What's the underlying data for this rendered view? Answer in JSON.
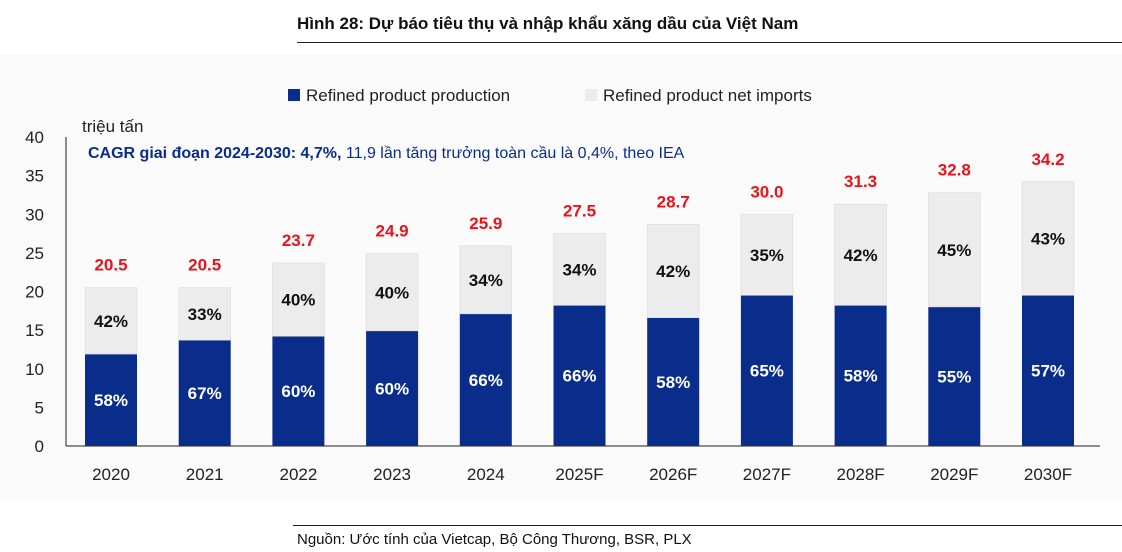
{
  "title": "Hình 28: Dự báo tiêu thụ và nhập khẩu xăng dầu của Việt Nam",
  "source": "Nguồn: Ước tính của Vietcap, Bộ Công Thương, BSR, PLX",
  "chart_data": {
    "type": "bar",
    "stacked": true,
    "ylabel": "triệu tấn",
    "ylim": [
      0,
      40
    ],
    "yticks": [
      "0",
      "5",
      "10",
      "15",
      "20",
      "25",
      "30",
      "35",
      "40"
    ],
    "grid": false,
    "legend_placement": "top",
    "annotation_bold": "CAGR giai đoạn 2024-2030: 4,7%,",
    "annotation_rest": " 11,9 lần tăng trưởng toàn cầu là 0,4%, theo IEA",
    "categories": [
      "2020",
      "2021",
      "2022",
      "2023",
      "2024",
      "2025F",
      "2026F",
      "2027F",
      "2028F",
      "2029F",
      "2030F"
    ],
    "totals": [
      "20.5",
      "20.5",
      "23.7",
      "24.9",
      "25.9",
      "27.5",
      "28.7",
      "30.0",
      "31.3",
      "32.8",
      "34.2"
    ],
    "series": [
      {
        "name": "Refined product production",
        "color": "#0a2d8c",
        "values": [
          11.9,
          13.7,
          14.2,
          14.9,
          17.1,
          18.2,
          16.6,
          19.5,
          18.2,
          18.0,
          19.5
        ],
        "labels": [
          "58%",
          "67%",
          "60%",
          "60%",
          "66%",
          "66%",
          "58%",
          "65%",
          "58%",
          "55%",
          "57%"
        ]
      },
      {
        "name": "Refined product net imports",
        "color": "#ececec",
        "values": [
          8.6,
          6.8,
          9.5,
          10.0,
          8.8,
          9.3,
          12.1,
          10.5,
          13.1,
          14.8,
          14.7
        ],
        "labels": [
          "42%",
          "33%",
          "40%",
          "40%",
          "34%",
          "34%",
          "42%",
          "35%",
          "42%",
          "45%",
          "43%"
        ]
      }
    ],
    "total_label_color": "#e8141b"
  }
}
